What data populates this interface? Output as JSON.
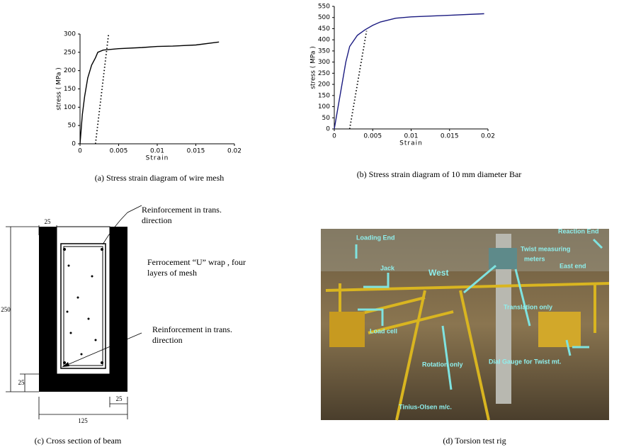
{
  "chart_data": [
    {
      "type": "line",
      "xlabel": "Strain",
      "ylabel": "stress ( MPa )",
      "xlim": [
        0,
        0.02
      ],
      "xticks": [
        0,
        0.005,
        0.01,
        0.015,
        0.02
      ],
      "ylim": [
        0,
        300
      ],
      "yticks": [
        0,
        50,
        100,
        150,
        200,
        250,
        300
      ],
      "series": [
        {
          "color": "#000000",
          "style": "solid",
          "x": [
            0,
            0.0003,
            0.0006,
            0.001,
            0.0015,
            0.002,
            0.0023,
            0.003,
            0.005,
            0.008,
            0.01,
            0.012,
            0.015,
            0.018
          ],
          "values": [
            0,
            80,
            130,
            180,
            215,
            235,
            250,
            256,
            260,
            263,
            266,
            267,
            270,
            278
          ]
        },
        {
          "color": "#000000",
          "style": "dotted",
          "x": [
            0.002,
            0.0037
          ],
          "values": [
            0,
            300
          ]
        }
      ]
    },
    {
      "type": "line",
      "xlabel": "Strain",
      "ylabel": "stress ( MPa )",
      "xlim": [
        0,
        0.02
      ],
      "xticks": [
        0,
        0.005,
        0.01,
        0.015,
        0.02
      ],
      "ylim": [
        0,
        550
      ],
      "yticks": [
        0,
        50,
        100,
        150,
        200,
        250,
        300,
        350,
        400,
        450,
        500,
        550
      ],
      "series": [
        {
          "color": "#1a1a80",
          "style": "solid",
          "x": [
            0,
            0.0005,
            0.001,
            0.0015,
            0.002,
            0.003,
            0.004,
            0.005,
            0.006,
            0.008,
            0.01,
            0.015,
            0.0195
          ],
          "values": [
            0,
            100,
            200,
            300,
            370,
            420,
            445,
            465,
            480,
            497,
            503,
            510,
            517
          ]
        },
        {
          "color": "#000000",
          "style": "dotted",
          "x": [
            0.002,
            0.0042
          ],
          "values": [
            0,
            440
          ]
        }
      ]
    }
  ],
  "captions": [
    "(a) Stress strain diagram of   wire mesh",
    "(b) Stress strain diagram of   10 mm diameter Bar",
    "(c)  Cross  section of beam",
    "(d)  Torsion test rig"
  ],
  "cross_section": {
    "labels": [
      "Reinforcement in trans.",
      "direction",
      "Ferrocement “U” wrap , four",
      "layers of mesh",
      "Reinforcement in trans.",
      "direction"
    ],
    "dimensions": [
      "25",
      "250",
      "25",
      "125",
      "25"
    ]
  },
  "photo": {
    "labels": [
      "Loading End",
      "Jack",
      "West",
      "Twist measuring",
      "meters",
      "Reaction End",
      "East end",
      "Load cell",
      "Translation only",
      "Rotation only",
      "Dial Gauge for Twist mt.",
      "Tinius-Olsen m/c."
    ]
  }
}
